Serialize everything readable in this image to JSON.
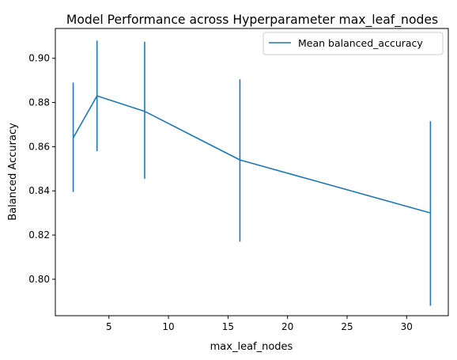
{
  "chart_data": {
    "type": "line",
    "title": "Model Performance across Hyperparameter max_leaf_nodes",
    "xlabel": "max_leaf_nodes",
    "ylabel": "Balanced Accuracy",
    "xlim": [
      0.5,
      33.5
    ],
    "ylim": [
      0.7835,
      0.9135
    ],
    "x_ticks": [
      5,
      10,
      15,
      20,
      25,
      30
    ],
    "y_ticks": [
      0.8,
      0.82,
      0.84,
      0.86,
      0.88,
      0.9
    ],
    "y_tick_labels": [
      "0.80",
      "0.82",
      "0.84",
      "0.86",
      "0.88",
      "0.90"
    ],
    "grid": false,
    "legend_position": "top-right",
    "series": [
      {
        "name": "Mean balanced_accuracy",
        "color": "#1f77b4",
        "x": [
          2,
          4,
          8,
          16,
          32
        ],
        "y": [
          0.864,
          0.883,
          0.876,
          0.854,
          0.83
        ],
        "error_lower": [
          0.8395,
          0.858,
          0.8455,
          0.817,
          0.788
        ],
        "error_upper": [
          0.889,
          0.908,
          0.9075,
          0.8905,
          0.8715
        ]
      }
    ]
  }
}
